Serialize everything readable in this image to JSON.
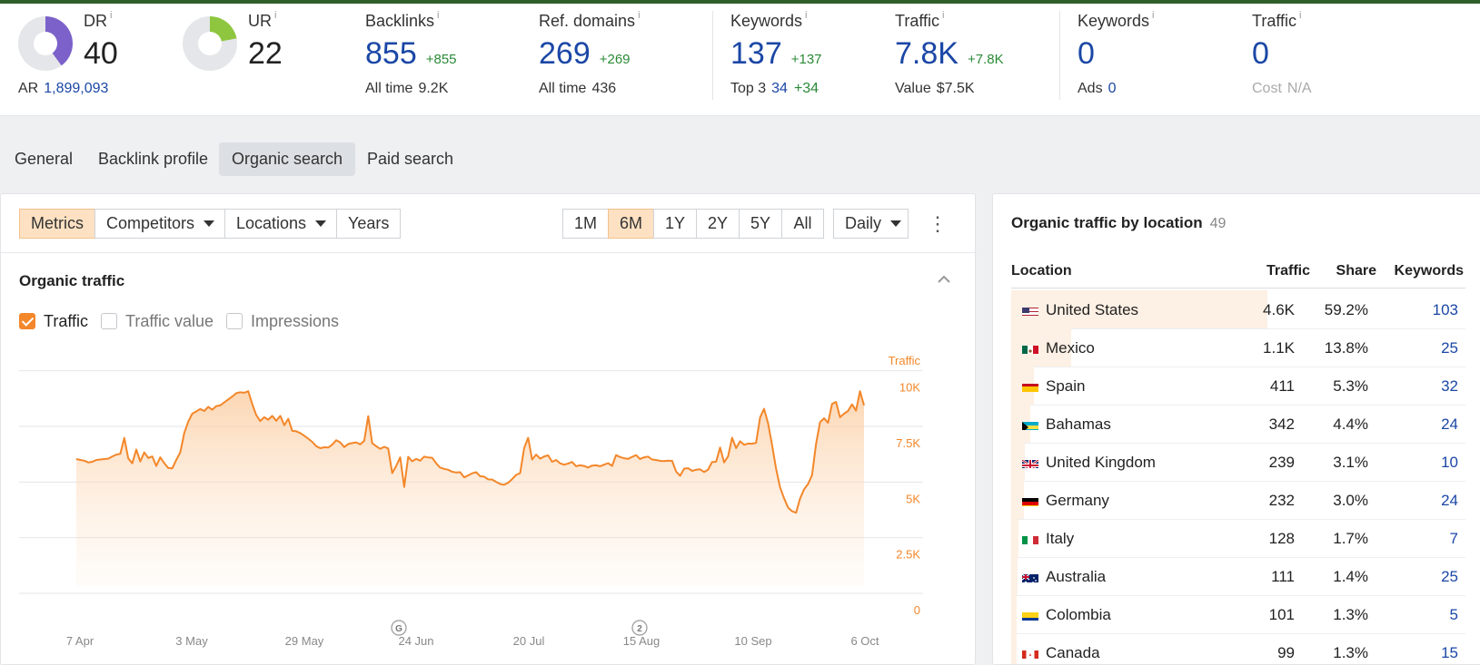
{
  "metrics": {
    "dr": {
      "label": "DR",
      "info": "i",
      "value": "40",
      "sub_label": "AR",
      "sub_value": "1,899,093",
      "ring_fraction": 0.4,
      "ring_color": "#7b61c9"
    },
    "ur": {
      "label": "UR",
      "info": "i",
      "value": "22",
      "ring_fraction": 0.22,
      "ring_color": "#8ec63f"
    },
    "backlinks": {
      "label": "Backlinks",
      "info": "i",
      "value": "855",
      "delta": "+855",
      "sub_label": "All time",
      "sub_value": "9.2K"
    },
    "ref_domains": {
      "label": "Ref. domains",
      "info": "i",
      "value": "269",
      "delta": "+269",
      "sub_label": "All time",
      "sub_value": "436"
    },
    "organic_keywords": {
      "label": "Keywords",
      "info": "i",
      "value": "137",
      "delta": "+137",
      "sub_label": "Top 3",
      "sub_value": "34",
      "sub_delta": "+34"
    },
    "organic_traffic": {
      "label": "Traffic",
      "info": "i",
      "value": "7.8K",
      "delta": "+7.8K",
      "sub_label": "Value",
      "sub_value": "$7.5K"
    },
    "paid_keywords": {
      "label": "Keywords",
      "info": "i",
      "value": "0",
      "sub_label": "Ads",
      "sub_value": "0"
    },
    "paid_traffic": {
      "label": "Traffic",
      "info": "i",
      "value": "0",
      "sub_label": "Cost",
      "sub_value": "N/A"
    }
  },
  "tabs": [
    "General",
    "Backlink profile",
    "Organic search",
    "Paid search"
  ],
  "active_tab": "Organic search",
  "toolbar": {
    "metrics": "Metrics",
    "competitors": "Competitors",
    "locations": "Locations",
    "years": "Years",
    "ranges": [
      "1M",
      "6M",
      "1Y",
      "2Y",
      "5Y",
      "All"
    ],
    "active_range": "6M",
    "granularity": "Daily",
    "more_icon": "kebab-vertical-icon"
  },
  "organic": {
    "title": "Organic traffic",
    "collapse_icon": "chevron-up-icon",
    "checks": [
      {
        "label": "Traffic",
        "checked": true
      },
      {
        "label": "Traffic value",
        "checked": false
      },
      {
        "label": "Impressions",
        "checked": false
      }
    ]
  },
  "chart_data": {
    "type": "area",
    "ylabel": "Traffic",
    "yticks": [
      "10K",
      "7.5K",
      "5K",
      "2.5K",
      "0"
    ],
    "ylim": [
      0,
      10800
    ],
    "xticks": [
      "7 Apr",
      "3 May",
      "29 May",
      "24 Jun",
      "20 Jul",
      "15 Aug",
      "10 Sep",
      "6 Oct"
    ],
    "markers": [
      {
        "label": "G",
        "at": "24 Jun"
      },
      {
        "label": "2",
        "at": "15 Aug"
      }
    ],
    "x_start": "2 Apr",
    "x_end": "7 Oct",
    "values": [
      6030,
      5990,
      5960,
      5880,
      5910,
      5990,
      6010,
      6030,
      6050,
      6150,
      6230,
      6270,
      6980,
      6060,
      5840,
      6460,
      5920,
      6330,
      6080,
      6150,
      5720,
      6110,
      5850,
      5630,
      5610,
      5990,
      6330,
      7200,
      7710,
      8070,
      8170,
      8280,
      8190,
      8380,
      8250,
      8410,
      8440,
      8580,
      8710,
      8840,
      8990,
      9030,
      9010,
      9080,
      8510,
      8010,
      7740,
      7910,
      7800,
      7970,
      7750,
      7970,
      7550,
      7840,
      7300,
      7280,
      7200,
      7080,
      6950,
      6800,
      6610,
      6520,
      6560,
      6550,
      6680,
      6880,
      6780,
      6570,
      6710,
      6750,
      6780,
      6690,
      6850,
      7960,
      6740,
      6610,
      6490,
      6580,
      6510,
      5400,
      5720,
      6110,
      4780,
      6130,
      5930,
      6040,
      5960,
      6140,
      6100,
      6090,
      5840,
      5650,
      5590,
      5550,
      5460,
      5430,
      5440,
      5210,
      5300,
      5390,
      5440,
      5260,
      5240,
      5120,
      5110,
      5010,
      4910,
      4880,
      4970,
      5130,
      5320,
      5400,
      6520,
      6990,
      6010,
      6230,
      6050,
      6150,
      6200,
      5910,
      5990,
      5840,
      5780,
      5830,
      5900,
      5710,
      5750,
      5720,
      5650,
      5740,
      5750,
      5710,
      5780,
      5850,
      5720,
      6210,
      6120,
      6070,
      6040,
      6130,
      6210,
      6030,
      6110,
      6140,
      6010,
      5990,
      5950,
      5940,
      5960,
      5950,
      5470,
      5280,
      5600,
      5620,
      5500,
      5550,
      5570,
      5450,
      5560,
      5900,
      5910,
      6550,
      5880,
      6160,
      6990,
      6520,
      6830,
      6670,
      6730,
      6720,
      6760,
      7900,
      8290,
      7640,
      6660,
      5600,
      4760,
      4270,
      3850,
      3690,
      3620,
      4250,
      4670,
      4910,
      5310,
      6710,
      7690,
      7860,
      7660,
      8510,
      8600,
      7910,
      8070,
      8190,
      8490,
      8210,
      9080,
      8440
    ]
  },
  "locations": {
    "title": "Organic traffic by location",
    "count": "49",
    "columns": [
      "Location",
      "Traffic",
      "Share",
      "Keywords"
    ],
    "rows": [
      {
        "name": "United States",
        "traffic": "4.6K",
        "share": "59.2%",
        "keywords": "103",
        "flag": "us",
        "share_value": 0.592
      },
      {
        "name": "Mexico",
        "traffic": "1.1K",
        "share": "13.8%",
        "keywords": "25",
        "flag": "mx",
        "share_value": 0.138
      },
      {
        "name": "Spain",
        "traffic": "411",
        "share": "5.3%",
        "keywords": "32",
        "flag": "es",
        "share_value": 0.053
      },
      {
        "name": "Bahamas",
        "traffic": "342",
        "share": "4.4%",
        "keywords": "24",
        "flag": "bs",
        "share_value": 0.044
      },
      {
        "name": "United Kingdom",
        "traffic": "239",
        "share": "3.1%",
        "keywords": "10",
        "flag": "gb",
        "share_value": 0.031
      },
      {
        "name": "Germany",
        "traffic": "232",
        "share": "3.0%",
        "keywords": "24",
        "flag": "de",
        "share_value": 0.03
      },
      {
        "name": "Italy",
        "traffic": "128",
        "share": "1.7%",
        "keywords": "7",
        "flag": "it",
        "share_value": 0.017
      },
      {
        "name": "Australia",
        "traffic": "111",
        "share": "1.4%",
        "keywords": "25",
        "flag": "au",
        "share_value": 0.014
      },
      {
        "name": "Colombia",
        "traffic": "101",
        "share": "1.3%",
        "keywords": "5",
        "flag": "co",
        "share_value": 0.013
      },
      {
        "name": "Canada",
        "traffic": "99",
        "share": "1.3%",
        "keywords": "15",
        "flag": "ca",
        "share_value": 0.013
      }
    ]
  }
}
